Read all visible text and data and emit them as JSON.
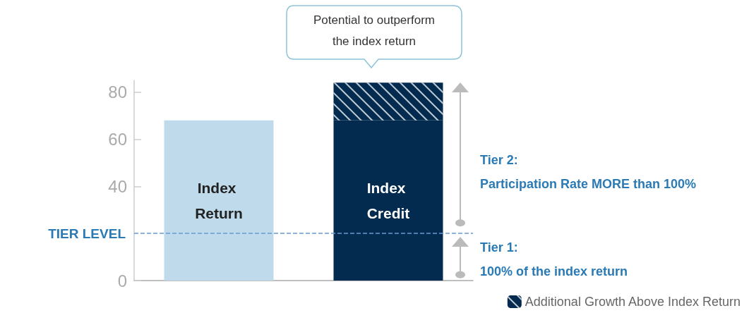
{
  "chart_data": {
    "type": "bar",
    "stacked": true,
    "categories": [
      "Index Return",
      "Index Credit"
    ],
    "series": [
      {
        "colors": [
          "#bfdaeb",
          "#032b4f"
        ],
        "values": [
          68,
          68
        ]
      },
      {
        "name": "Additional Growth Above Index Return",
        "color": "#032b4f",
        "values": [
          null,
          16
        ]
      }
    ],
    "ylim": [
      0,
      85
    ],
    "yticks": [
      0,
      40,
      60,
      80
    ],
    "tick_labels": "y",
    "grid": false,
    "legend": "bottom right",
    "ref_lines": [
      {
        "axis": "y",
        "value": 20,
        "label": "TIER LEVEL",
        "color": "#6a9ad0",
        "line_style": "dashed"
      }
    ],
    "annotations": [
      "Potential to outperform\nthe index return",
      "Tier 2:\nParticipation Rate MORE than 100%",
      "Tier 1:\n100% of the index return"
    ]
  }
}
